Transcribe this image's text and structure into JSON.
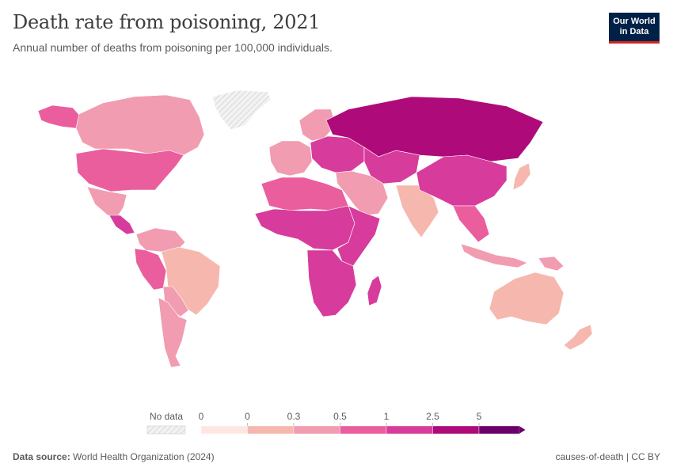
{
  "title": "Death rate from poisoning, 2021",
  "subtitle": "Annual number of deaths from poisoning per 100,000 individuals.",
  "logo": {
    "line1": "Our World",
    "line2": "in Data"
  },
  "legend": {
    "no_data_label": "No data",
    "ticks": [
      "0",
      "0",
      "0.3",
      "0.5",
      "1",
      "2.5",
      "5"
    ],
    "colors": [
      "#fde7e2",
      "#f6b8ae",
      "#f19cb0",
      "#ea5e9e",
      "#d73c9c",
      "#ae0a7a",
      "#6b006b"
    ],
    "no_data_color": "#e8e8e8"
  },
  "footer": {
    "source_label": "Data source:",
    "source_text": "World Health Organization (2024)",
    "right_text": "causes-of-death | CC BY"
  },
  "map_regions": [
    {
      "name": "alaska",
      "level": 3
    },
    {
      "name": "canada",
      "level": 2
    },
    {
      "name": "greenland",
      "level": -1
    },
    {
      "name": "usa",
      "level": 3
    },
    {
      "name": "mexico",
      "level": 2
    },
    {
      "name": "central-america",
      "level": 4
    },
    {
      "name": "colombia-venezuela",
      "level": 2
    },
    {
      "name": "ecuador-peru",
      "level": 3
    },
    {
      "name": "brazil",
      "level": 1
    },
    {
      "name": "bolivia-paraguay",
      "level": 2
    },
    {
      "name": "argentina-chile",
      "level": 2
    },
    {
      "name": "western-europe",
      "level": 2
    },
    {
      "name": "scandinavia",
      "level": 2
    },
    {
      "name": "eastern-europe",
      "level": 4
    },
    {
      "name": "russia",
      "level": 5
    },
    {
      "name": "central-asia",
      "level": 4
    },
    {
      "name": "middle-east",
      "level": 2
    },
    {
      "name": "north-africa",
      "level": 3
    },
    {
      "name": "sahel-central-africa",
      "level": 4
    },
    {
      "name": "east-africa",
      "level": 4
    },
    {
      "name": "southern-africa",
      "level": 4
    },
    {
      "name": "madagascar",
      "level": 4
    },
    {
      "name": "india",
      "level": 1
    },
    {
      "name": "china-mongolia",
      "level": 4
    },
    {
      "name": "southeast-asia",
      "level": 3
    },
    {
      "name": "japan",
      "level": 1
    },
    {
      "name": "indonesia",
      "level": 2
    },
    {
      "name": "australia",
      "level": 1
    },
    {
      "name": "new-zealand",
      "level": 1
    },
    {
      "name": "papua-new-guinea",
      "level": 2
    }
  ]
}
